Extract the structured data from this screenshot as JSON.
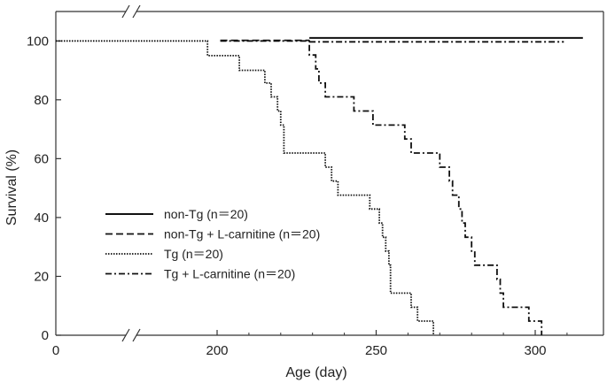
{
  "chart_data": {
    "type": "line",
    "xlabel": "Age (day)",
    "ylabel": "Survival (%)",
    "xlim": [
      0,
      320
    ],
    "ylim": [
      0,
      110
    ],
    "axis_break": {
      "x": 50,
      "marker": "//"
    },
    "x_ticks": [
      {
        "value": 0,
        "label": "0"
      },
      {
        "value": 200,
        "label": "200"
      },
      {
        "value": 250,
        "label": "250"
      },
      {
        "value": 300,
        "label": "300"
      }
    ],
    "y_ticks": [
      {
        "value": 0,
        "label": "0"
      },
      {
        "value": 20,
        "label": "20"
      },
      {
        "value": 40,
        "label": "40"
      },
      {
        "value": 60,
        "label": "60"
      },
      {
        "value": 80,
        "label": "80"
      },
      {
        "value": 100,
        "label": "100"
      }
    ],
    "grid": false,
    "legend_position": "middle-left",
    "series": [
      {
        "name": "non-Tg (n＝20)",
        "style": "solid",
        "points": [
          [
            229,
            101
          ],
          [
            315,
            101
          ]
        ]
      },
      {
        "name": "non-Tg + L-carnitine (n＝20)",
        "style": "dashed",
        "points": [
          [
            201,
            100.2
          ],
          [
            229,
            100.2
          ]
        ]
      },
      {
        "name": "Tg (n＝20)",
        "style": "dotted",
        "points": [
          [
            0,
            100
          ],
          [
            197,
            100
          ],
          [
            197,
            95
          ],
          [
            207,
            95
          ],
          [
            207,
            90
          ],
          [
            215,
            90
          ],
          [
            215,
            85.7
          ],
          [
            217,
            85.7
          ],
          [
            217,
            81
          ],
          [
            219,
            81
          ],
          [
            219,
            76.2
          ],
          [
            220,
            76.2
          ],
          [
            220,
            71.4
          ],
          [
            221,
            71.4
          ],
          [
            221,
            61.9
          ],
          [
            234,
            61.9
          ],
          [
            234,
            57.1
          ],
          [
            236,
            57.1
          ],
          [
            236,
            52.4
          ],
          [
            238,
            52.4
          ],
          [
            238,
            47.6
          ],
          [
            248,
            47.6
          ],
          [
            248,
            42.9
          ],
          [
            251,
            42.9
          ],
          [
            251,
            38.1
          ],
          [
            252,
            38.1
          ],
          [
            252,
            33.3
          ],
          [
            253,
            33.3
          ],
          [
            253,
            28.6
          ],
          [
            254,
            28.6
          ],
          [
            254,
            23.8
          ],
          [
            254.5,
            23.8
          ],
          [
            254.5,
            14.3
          ],
          [
            261,
            14.3
          ],
          [
            261,
            9.5
          ],
          [
            263,
            9.5
          ],
          [
            263,
            4.8
          ],
          [
            268,
            4.8
          ],
          [
            268,
            0
          ]
        ]
      },
      {
        "name": "Tg + L-carnitine (n＝20)",
        "style": "dash-dot",
        "points": [
          [
            201,
            100
          ],
          [
            229,
            100
          ],
          [
            229,
            95.2
          ],
          [
            231,
            95.2
          ],
          [
            231,
            90.5
          ],
          [
            232,
            90.5
          ],
          [
            232,
            85.7
          ],
          [
            234,
            85.7
          ],
          [
            234,
            81
          ],
          [
            243,
            81
          ],
          [
            243,
            76.2
          ],
          [
            249,
            76.2
          ],
          [
            249,
            71.4
          ],
          [
            259,
            71.4
          ],
          [
            259,
            66.7
          ],
          [
            261,
            66.7
          ],
          [
            261,
            61.9
          ],
          [
            270,
            61.9
          ],
          [
            270,
            57.1
          ],
          [
            273,
            57.1
          ],
          [
            273,
            52.4
          ],
          [
            274,
            52.4
          ],
          [
            274,
            47.6
          ],
          [
            276,
            47.6
          ],
          [
            276,
            42.9
          ],
          [
            277,
            42.9
          ],
          [
            277,
            38.1
          ],
          [
            278,
            38.1
          ],
          [
            278,
            33.3
          ],
          [
            280,
            33.3
          ],
          [
            280,
            28.6
          ],
          [
            281,
            28.6
          ],
          [
            281,
            23.8
          ],
          [
            288,
            23.8
          ],
          [
            288,
            19
          ],
          [
            289,
            19
          ],
          [
            289,
            14.3
          ],
          [
            290,
            14.3
          ],
          [
            290,
            9.5
          ],
          [
            298,
            9.5
          ],
          [
            298,
            4.8
          ],
          [
            302,
            4.8
          ],
          [
            302,
            0
          ]
        ]
      }
    ],
    "series_style_order": [
      "solid",
      "dashed",
      "dotted",
      "dash-dot"
    ],
    "extra_lines": [
      {
        "style": "dash-dot",
        "points": [
          [
            229,
            99.7
          ],
          [
            309,
            99.7
          ]
        ]
      }
    ]
  }
}
